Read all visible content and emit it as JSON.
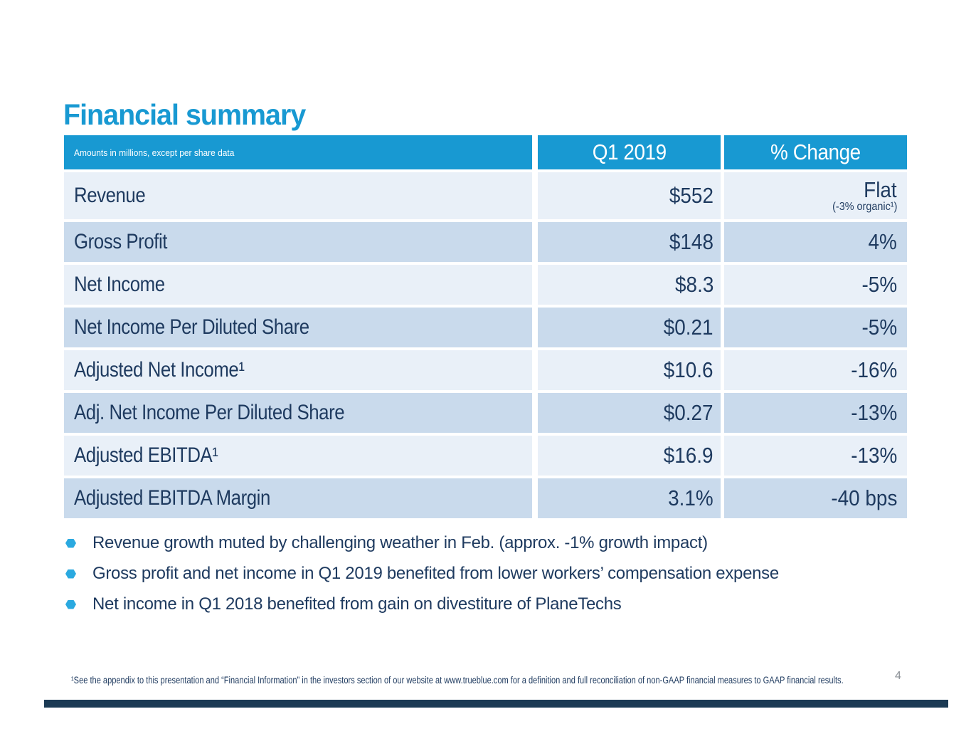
{
  "slide": {
    "title": "Financial summary",
    "page_number": "4"
  },
  "table": {
    "note": "Amounts in millions, except per share data",
    "columns": [
      "Q1 2019",
      "% Change"
    ],
    "rows": [
      {
        "label": "Revenue",
        "q1": "$552",
        "change": "Flat",
        "change_sub": "(-3% organic¹)"
      },
      {
        "label": "Gross Profit",
        "q1": "$148",
        "change": "4%"
      },
      {
        "label": "Net Income",
        "q1": "$8.3",
        "change": "-5%"
      },
      {
        "label": "Net Income Per Diluted Share",
        "q1": "$0.21",
        "change": "-5%"
      },
      {
        "label": "Adjusted Net Income¹",
        "q1": "$10.6",
        "change": "-16%"
      },
      {
        "label": "Adj. Net Income Per Diluted Share",
        "q1": "$0.27",
        "change": "-13%"
      },
      {
        "label": "Adjusted EBITDA¹",
        "q1": "$16.9",
        "change": "-13%"
      },
      {
        "label": "Adjusted EBITDA Margin",
        "q1": "3.1%",
        "change": "-40 bps"
      }
    ]
  },
  "bullets": [
    "Revenue growth muted by challenging weather in Feb. (approx. -1% growth impact)",
    "Gross profit and net income in Q1 2019 benefited from lower workers’ compensation expense",
    "Net income in Q1 2018 benefited from gain on divestiture of PlaneTechs"
  ],
  "footnote": {
    "text": "¹See the appendix to this presentation and “Financial Information” in the investors section of our website at www.trueblue.com for a definition and full reconciliation of non-GAAP financial measures to GAAP financial results."
  },
  "colors": {
    "accent_blue": "#1899d2",
    "navy_text": "#1e3a5f",
    "row_dark": "#c9daec",
    "row_light": "#e9f0f8",
    "bullet_blue": "#2aa9e0",
    "footer_bar_navy": "#1b3a54",
    "page_number_gray": "#8b9196"
  }
}
